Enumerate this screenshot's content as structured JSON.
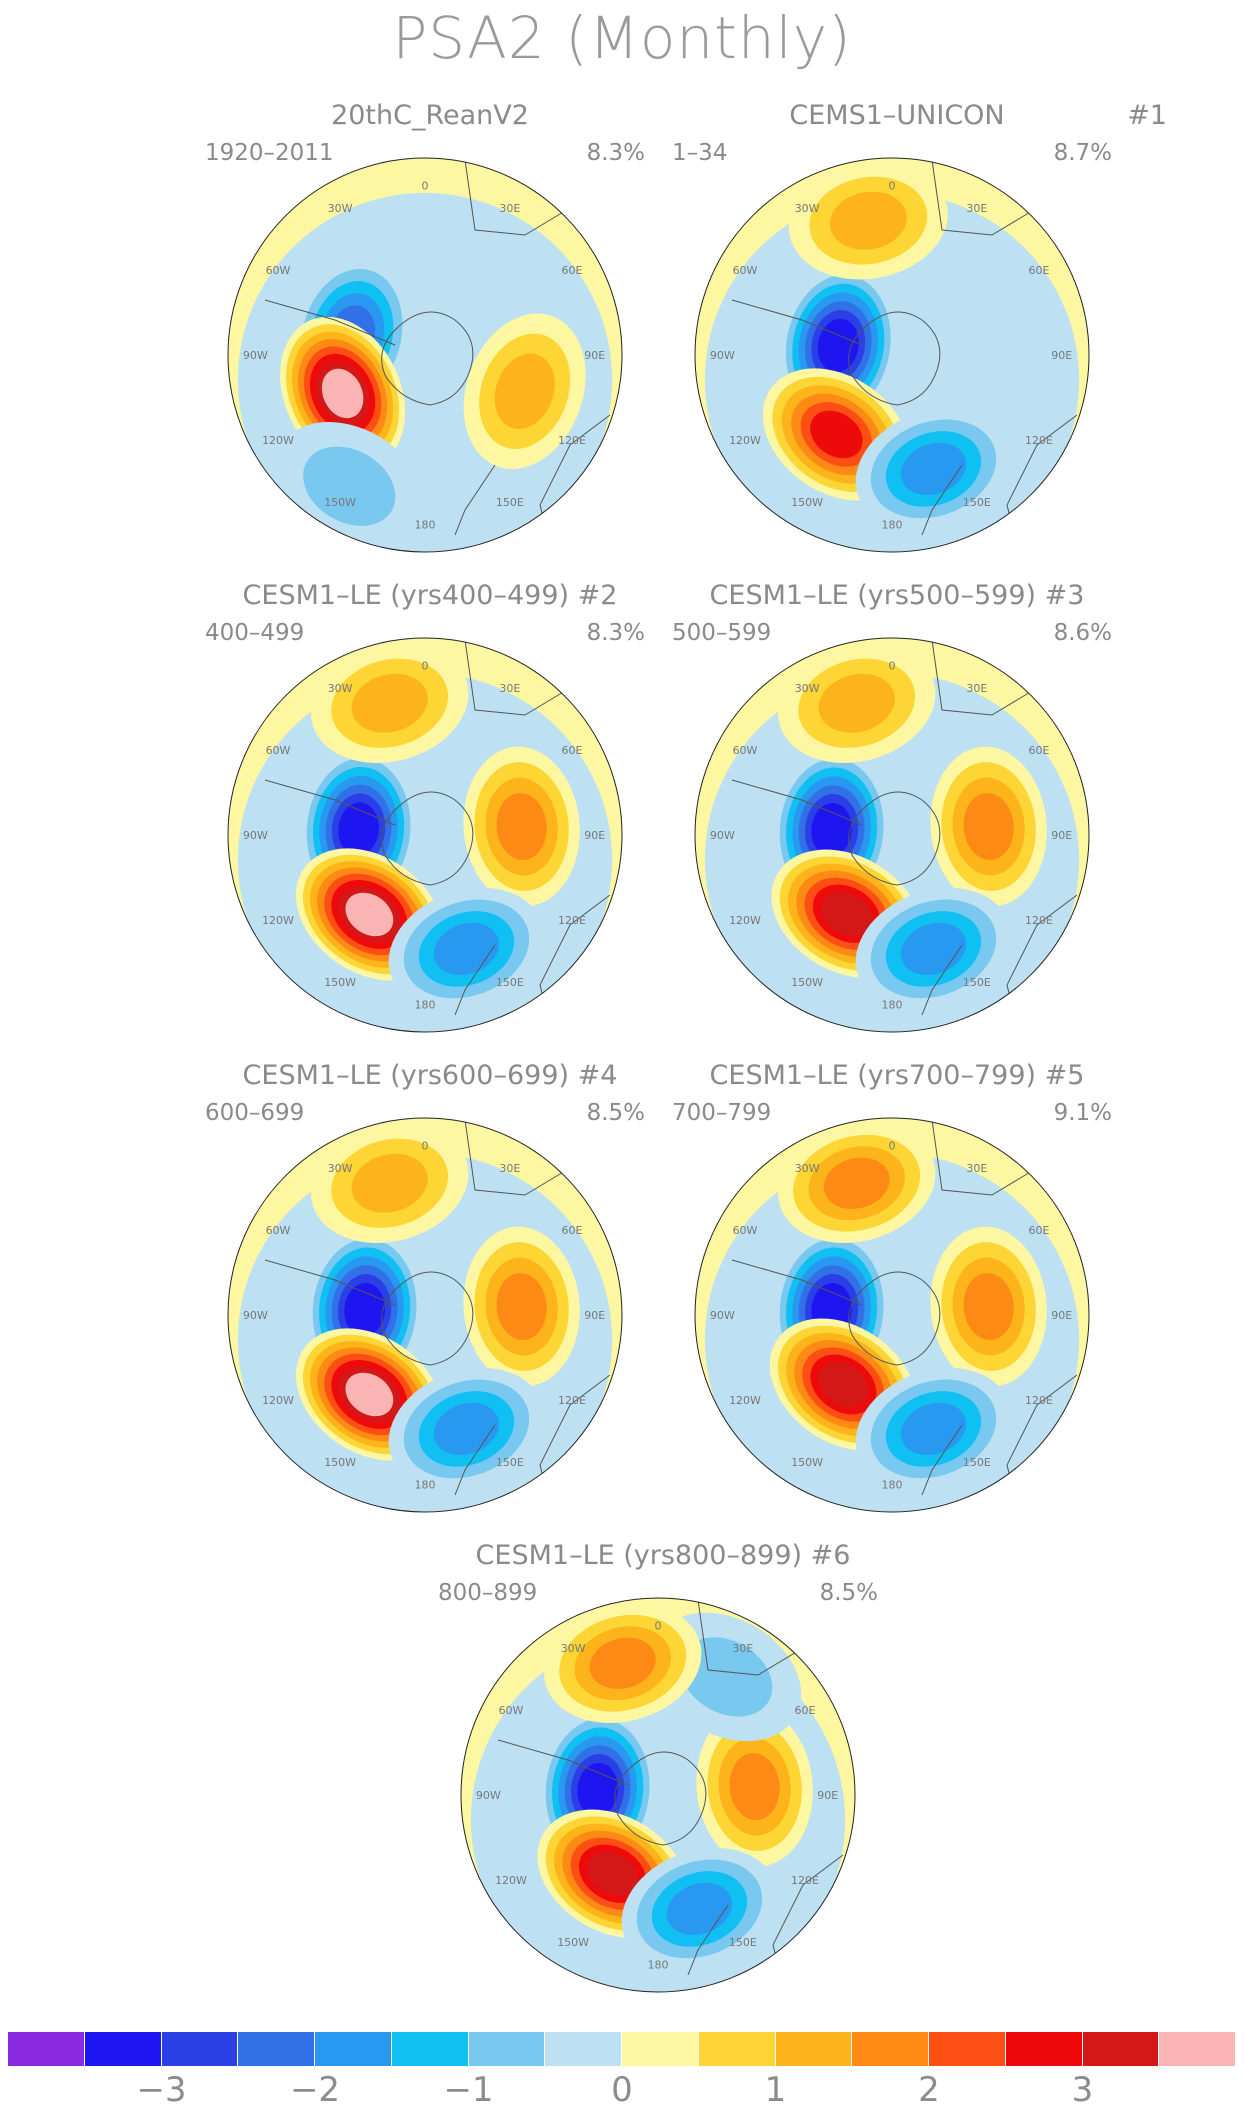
{
  "title": "PSA2 (Monthly)",
  "colorbar": {
    "colors": [
      "#8a2be2",
      "#1e16f0",
      "#2a40e6",
      "#3270e8",
      "#2898f0",
      "#10c0f2",
      "#78c8f0",
      "#bde1f2",
      "#fdf7a2",
      "#fdd535",
      "#fdb31a",
      "#fd8a15",
      "#fd4e14",
      "#ee0a0a",
      "#d41818",
      "#fbb4b4"
    ],
    "labels": [
      "−3",
      "−2",
      "−1",
      "0",
      "1",
      "2",
      "3"
    ]
  },
  "map_labels": {
    "lon_0": "0",
    "lon_30w": "30W",
    "lon_30e": "30E",
    "lon_60w": "60W",
    "lon_60e": "60E",
    "lon_90w": "90W",
    "lon_90e": "90E",
    "lon_120w": "120W",
    "lon_120e": "120E",
    "lon_150w": "150W",
    "lon_150e": "150E",
    "lon_180": "180"
  },
  "panels": [
    {
      "title": "20thC_ReanV2",
      "number": "",
      "years": "1920–2011",
      "variance": "8.3%"
    },
    {
      "title": "CEMS1–UNICON",
      "number": "#1",
      "years": "1–34",
      "variance": "8.7%"
    },
    {
      "title": "CESM1–LE (yrs400–499) #2",
      "number": "",
      "years": "400–499",
      "variance": "8.3%"
    },
    {
      "title": "CESM1–LE (yrs500–599) #3",
      "number": "",
      "years": "500–599",
      "variance": "8.6%"
    },
    {
      "title": "CESM1–LE (yrs600–699) #4",
      "number": "",
      "years": "600–699",
      "variance": "8.5%"
    },
    {
      "title": "CESM1–LE (yrs700–799) #5",
      "number": "",
      "years": "700–799",
      "variance": "9.1%"
    },
    {
      "title": "CESM1–LE (yrs800–899) #6",
      "number": "",
      "years": "800–899",
      "variance": "8.5%"
    }
  ],
  "chart_data": {
    "type": "heatmap",
    "title": "PSA2 (Monthly)",
    "projection": "south polar stereographic",
    "field": "regression pattern of PSA2 mode (sea level pressure), contour-filled",
    "color_levels": [
      -3.5,
      -3,
      -2.5,
      -2,
      -1.5,
      -1,
      -0.5,
      0,
      0.5,
      1,
      1.5,
      2,
      2.5,
      3,
      3.5
    ],
    "colorbar_ticks": [
      -3,
      -2,
      -1,
      0,
      1,
      2,
      3
    ],
    "maps": [
      {
        "name": "20thC_ReanV2",
        "period": "1920-2011",
        "variance_explained_pct": 8.3,
        "anomalies": [
          {
            "sign": "neg",
            "lon_deg": -75,
            "lat_deg": -65,
            "amplitude": -2.3
          },
          {
            "sign": "pos",
            "lon_deg": -115,
            "lat_deg": -60,
            "amplitude": 3.6
          },
          {
            "sign": "pos",
            "lon_deg": 110,
            "lat_deg": -55,
            "amplitude": 1.5
          },
          {
            "sign": "neg",
            "lon_deg": -150,
            "lat_deg": -40,
            "amplitude": -0.7
          }
        ]
      },
      {
        "name": "CEMS1-UNICON #1",
        "period": "1-34",
        "variance_explained_pct": 8.7,
        "anomalies": [
          {
            "sign": "neg",
            "lon_deg": -80,
            "lat_deg": -72,
            "amplitude": -3.4
          },
          {
            "sign": "pos",
            "lon_deg": -145,
            "lat_deg": -58,
            "amplitude": 3.0
          },
          {
            "sign": "neg",
            "lon_deg": 160,
            "lat_deg": -50,
            "amplitude": -1.8
          },
          {
            "sign": "pos",
            "lon_deg": -10,
            "lat_deg": -45,
            "amplitude": 1.3
          }
        ]
      },
      {
        "name": "CESM1-LE #2",
        "period": "400-499",
        "variance_explained_pct": 8.3,
        "anomalies": [
          {
            "sign": "neg",
            "lon_deg": -85,
            "lat_deg": -68,
            "amplitude": -3.1
          },
          {
            "sign": "pos",
            "lon_deg": -145,
            "lat_deg": -58,
            "amplitude": 3.6
          },
          {
            "sign": "pos",
            "lon_deg": 85,
            "lat_deg": -58,
            "amplitude": 1.8
          },
          {
            "sign": "neg",
            "lon_deg": 160,
            "lat_deg": -50,
            "amplitude": -1.7
          },
          {
            "sign": "pos",
            "lon_deg": -15,
            "lat_deg": -45,
            "amplitude": 1.3
          }
        ]
      },
      {
        "name": "CESM1-LE #3",
        "period": "500-599",
        "variance_explained_pct": 8.6,
        "anomalies": [
          {
            "sign": "neg",
            "lon_deg": -85,
            "lat_deg": -70,
            "amplitude": -3.1
          },
          {
            "sign": "pos",
            "lon_deg": -150,
            "lat_deg": -60,
            "amplitude": 3.1
          },
          {
            "sign": "pos",
            "lon_deg": 85,
            "lat_deg": -58,
            "amplitude": 1.8
          },
          {
            "sign": "neg",
            "lon_deg": 160,
            "lat_deg": -50,
            "amplitude": -1.7
          },
          {
            "sign": "pos",
            "lon_deg": -15,
            "lat_deg": -45,
            "amplitude": 1.4
          }
        ]
      },
      {
        "name": "CESM1-LE #4",
        "period": "600-699",
        "variance_explained_pct": 8.5,
        "anomalies": [
          {
            "sign": "neg",
            "lon_deg": -85,
            "lat_deg": -70,
            "amplitude": -3.1
          },
          {
            "sign": "pos",
            "lon_deg": -145,
            "lat_deg": -58,
            "amplitude": 3.6
          },
          {
            "sign": "pos",
            "lon_deg": 85,
            "lat_deg": -58,
            "amplitude": 1.8
          },
          {
            "sign": "neg",
            "lon_deg": 160,
            "lat_deg": -50,
            "amplitude": -1.8
          },
          {
            "sign": "pos",
            "lon_deg": -15,
            "lat_deg": -45,
            "amplitude": 1.4
          }
        ]
      },
      {
        "name": "CESM1-LE #5",
        "period": "700-799",
        "variance_explained_pct": 9.1,
        "anomalies": [
          {
            "sign": "neg",
            "lon_deg": -85,
            "lat_deg": -70,
            "amplitude": -3.4
          },
          {
            "sign": "pos",
            "lon_deg": -145,
            "lat_deg": -62,
            "amplitude": 3.1
          },
          {
            "sign": "pos",
            "lon_deg": 85,
            "lat_deg": -58,
            "amplitude": 1.8
          },
          {
            "sign": "neg",
            "lon_deg": 160,
            "lat_deg": -50,
            "amplitude": -1.8
          },
          {
            "sign": "pos",
            "lon_deg": -15,
            "lat_deg": -45,
            "amplitude": 1.6
          }
        ]
      },
      {
        "name": "CESM1-LE #6",
        "period": "800-899",
        "variance_explained_pct": 8.5,
        "anomalies": [
          {
            "sign": "neg",
            "lon_deg": -85,
            "lat_deg": -70,
            "amplitude": -3.4
          },
          {
            "sign": "pos",
            "lon_deg": -150,
            "lat_deg": -60,
            "amplitude": 3.1
          },
          {
            "sign": "pos",
            "lon_deg": 85,
            "lat_deg": -58,
            "amplitude": 1.8
          },
          {
            "sign": "neg",
            "lon_deg": 160,
            "lat_deg": -50,
            "amplitude": -1.7
          },
          {
            "sign": "neg",
            "lon_deg": 30,
            "lat_deg": -45,
            "amplitude": -1.0
          },
          {
            "sign": "pos",
            "lon_deg": -15,
            "lat_deg": -45,
            "amplitude": 1.6
          }
        ]
      }
    ]
  }
}
